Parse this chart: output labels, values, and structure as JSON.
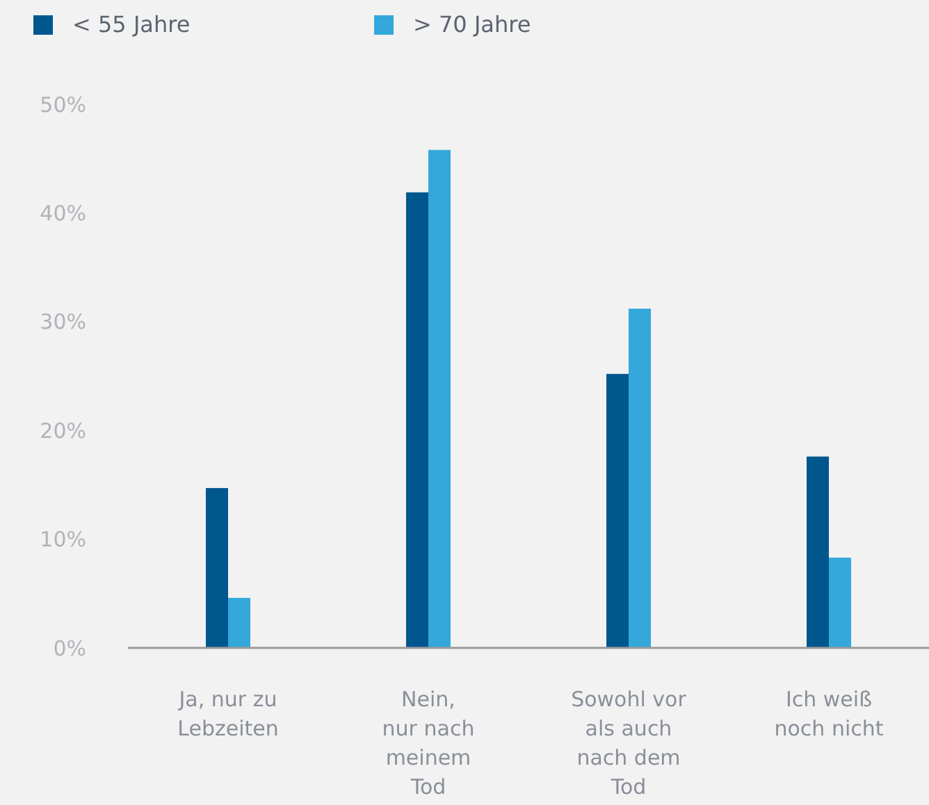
{
  "chart_data": {
    "type": "bar",
    "categories": [
      "Ja, nur zu\nLebzeiten",
      "Nein,\nnur nach\nmeinem\nTod",
      "Sowohl vor\nals auch\nnach dem\nTod",
      "Ich weiß\nnoch nicht"
    ],
    "series": [
      {
        "name": "< 55 Jahre",
        "color": "#00578e",
        "values": [
          14.7,
          41.9,
          25.2,
          17.6
        ]
      },
      {
        "name": "> 70 Jahre",
        "color": "#34a8da",
        "values": [
          4.6,
          45.8,
          31.2,
          8.3
        ]
      }
    ],
    "ylim": [
      0,
      50
    ],
    "yticks": [
      {
        "value": 0,
        "label": "0%"
      },
      {
        "value": 10,
        "label": "10%"
      },
      {
        "value": 20,
        "label": "20%"
      },
      {
        "value": 30,
        "label": "30%"
      },
      {
        "value": 40,
        "label": "40%"
      },
      {
        "value": 50,
        "label": "50%"
      }
    ],
    "grid": false,
    "legend": "top left"
  }
}
